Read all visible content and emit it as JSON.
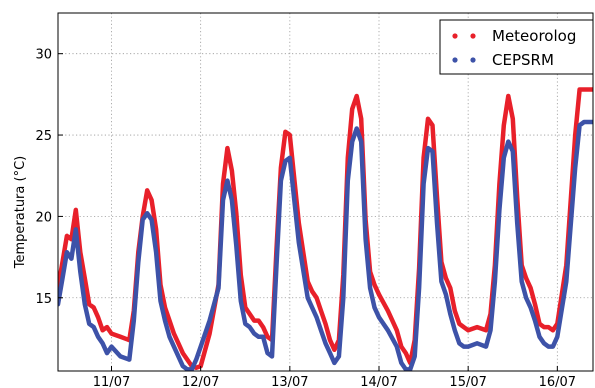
{
  "chart_data": {
    "type": "line",
    "title": "",
    "xlabel": "",
    "ylabel": "Temperatura (°C)",
    "grid": true,
    "grid_style": "dotted",
    "legend_position": "top-right",
    "xlim": [
      0,
      6.0
    ],
    "ylim": [
      10.5,
      32.5
    ],
    "x_ticks": [
      {
        "value": 0.6,
        "label": "11/07"
      },
      {
        "value": 1.6,
        "label": "12/07"
      },
      {
        "value": 2.6,
        "label": "13/07"
      },
      {
        "value": 3.6,
        "label": "14/07"
      },
      {
        "value": 4.6,
        "label": "15/07"
      },
      {
        "value": 5.6,
        "label": "16/07"
      }
    ],
    "y_ticks": [
      {
        "value": 15,
        "label": "15"
      },
      {
        "value": 20,
        "label": "20"
      },
      {
        "value": 25,
        "label": "25"
      },
      {
        "value": 30,
        "label": "30"
      }
    ],
    "series": [
      {
        "name": "Meteorolog",
        "color": "#e8202a",
        "x": [
          0.0,
          0.05,
          0.1,
          0.15,
          0.2,
          0.25,
          0.3,
          0.35,
          0.4,
          0.45,
          0.5,
          0.55,
          0.6,
          0.7,
          0.8,
          0.85,
          0.9,
          0.95,
          1.0,
          1.05,
          1.1,
          1.15,
          1.2,
          1.25,
          1.3,
          1.35,
          1.4,
          1.45,
          1.5,
          1.55,
          1.6,
          1.7,
          1.8,
          1.85,
          1.9,
          1.95,
          2.0,
          2.05,
          2.1,
          2.15,
          2.2,
          2.25,
          2.3,
          2.35,
          2.4,
          2.45,
          2.5,
          2.55,
          2.6,
          2.7,
          2.8,
          2.85,
          2.9,
          2.95,
          3.0,
          3.05,
          3.1,
          3.15,
          3.2,
          3.25,
          3.3,
          3.35,
          3.4,
          3.45,
          3.5,
          3.55,
          3.6,
          3.7,
          3.8,
          3.85,
          3.9,
          3.95,
          4.0,
          4.05,
          4.1,
          4.15,
          4.2,
          4.25,
          4.3,
          4.35,
          4.4,
          4.45,
          4.5,
          4.55,
          4.6,
          4.7,
          4.8,
          4.85,
          4.9,
          4.95,
          5.0,
          5.05,
          5.1,
          5.15,
          5.2,
          5.25,
          5.3,
          5.35,
          5.4,
          5.45,
          5.5,
          5.55,
          5.6,
          5.7,
          5.8,
          5.85,
          5.9,
          5.95,
          6.0
        ],
        "y": [
          15.6,
          17.2,
          18.8,
          18.6,
          20.4,
          17.8,
          16.2,
          14.6,
          14.4,
          13.8,
          13.0,
          13.2,
          12.8,
          12.6,
          12.4,
          14.2,
          17.8,
          20.0,
          21.6,
          21.0,
          19.2,
          15.8,
          14.4,
          13.6,
          12.8,
          12.2,
          11.6,
          11.2,
          10.8,
          10.7,
          10.8,
          12.8,
          15.8,
          22.0,
          24.2,
          22.8,
          20.2,
          16.4,
          14.4,
          14.0,
          13.6,
          13.6,
          13.2,
          12.6,
          12.4,
          18.0,
          23.0,
          25.2,
          25.0,
          19.6,
          16.0,
          15.4,
          15.0,
          14.2,
          13.4,
          12.4,
          11.8,
          12.4,
          16.4,
          23.6,
          26.6,
          27.4,
          26.0,
          19.8,
          16.6,
          15.8,
          15.2,
          14.2,
          13.0,
          12.0,
          11.6,
          11.0,
          12.4,
          16.8,
          23.6,
          26.0,
          25.6,
          21.2,
          17.2,
          16.2,
          15.6,
          14.2,
          13.4,
          13.2,
          13.0,
          13.2,
          13.0,
          14.0,
          17.0,
          22.0,
          25.6,
          27.4,
          26.0,
          21.2,
          17.0,
          16.2,
          15.6,
          14.6,
          13.4,
          13.2,
          13.2,
          13.0,
          13.4,
          17.0,
          25.0,
          27.8,
          27.8,
          27.8,
          27.8
        ],
        "x_dense_note": ""
      },
      {
        "name": "CEPSRM",
        "color": "#3d52a8",
        "x": [
          0.0,
          0.05,
          0.1,
          0.15,
          0.2,
          0.25,
          0.3,
          0.35,
          0.4,
          0.45,
          0.5,
          0.55,
          0.6,
          0.7,
          0.8,
          0.85,
          0.9,
          0.95,
          1.0,
          1.05,
          1.1,
          1.15,
          1.2,
          1.25,
          1.3,
          1.35,
          1.4,
          1.45,
          1.5,
          1.55,
          1.6,
          1.7,
          1.8,
          1.85,
          1.9,
          1.95,
          2.0,
          2.05,
          2.1,
          2.15,
          2.2,
          2.25,
          2.3,
          2.35,
          2.4,
          2.45,
          2.5,
          2.55,
          2.6,
          2.7,
          2.8,
          2.85,
          2.9,
          2.95,
          3.0,
          3.05,
          3.1,
          3.15,
          3.2,
          3.25,
          3.3,
          3.35,
          3.4,
          3.45,
          3.5,
          3.55,
          3.6,
          3.7,
          3.8,
          3.85,
          3.9,
          3.95,
          4.0,
          4.05,
          4.1,
          4.15,
          4.2,
          4.25,
          4.3,
          4.35,
          4.4,
          4.45,
          4.5,
          4.55,
          4.6,
          4.7,
          4.8,
          4.85,
          4.9,
          4.95,
          5.0,
          5.05,
          5.1,
          5.15,
          5.2,
          5.25,
          5.3,
          5.35,
          5.4,
          5.45,
          5.5,
          5.55,
          5.6,
          5.7,
          5.8,
          5.85,
          5.9,
          5.95,
          6.0
        ],
        "y": [
          14.6,
          16.2,
          17.8,
          17.4,
          19.2,
          16.6,
          14.6,
          13.4,
          13.2,
          12.6,
          12.2,
          11.6,
          12.0,
          11.4,
          11.2,
          13.6,
          17.2,
          19.8,
          20.2,
          19.8,
          17.8,
          14.8,
          13.6,
          12.6,
          12.0,
          11.4,
          10.8,
          10.6,
          10.6,
          11.2,
          12.0,
          13.6,
          15.6,
          21.0,
          22.2,
          21.0,
          18.2,
          14.8,
          13.4,
          13.2,
          12.8,
          12.6,
          12.6,
          11.6,
          11.4,
          17.0,
          22.2,
          23.4,
          23.6,
          18.4,
          15.0,
          14.4,
          13.8,
          13.0,
          12.2,
          11.6,
          11.0,
          11.4,
          15.0,
          22.2,
          24.6,
          25.4,
          24.6,
          18.6,
          15.6,
          14.4,
          13.8,
          13.0,
          12.0,
          11.0,
          10.6,
          10.6,
          11.4,
          15.6,
          22.0,
          24.2,
          24.0,
          19.6,
          16.0,
          15.2,
          14.0,
          13.0,
          12.2,
          12.0,
          12.0,
          12.2,
          12.0,
          13.0,
          16.0,
          20.4,
          23.6,
          24.6,
          24.0,
          19.6,
          16.0,
          15.0,
          14.4,
          13.6,
          12.6,
          12.2,
          12.0,
          12.0,
          12.6,
          16.0,
          23.0,
          25.6,
          25.8,
          25.8,
          25.8
        ],
        "x_dense_note": ""
      }
    ]
  }
}
